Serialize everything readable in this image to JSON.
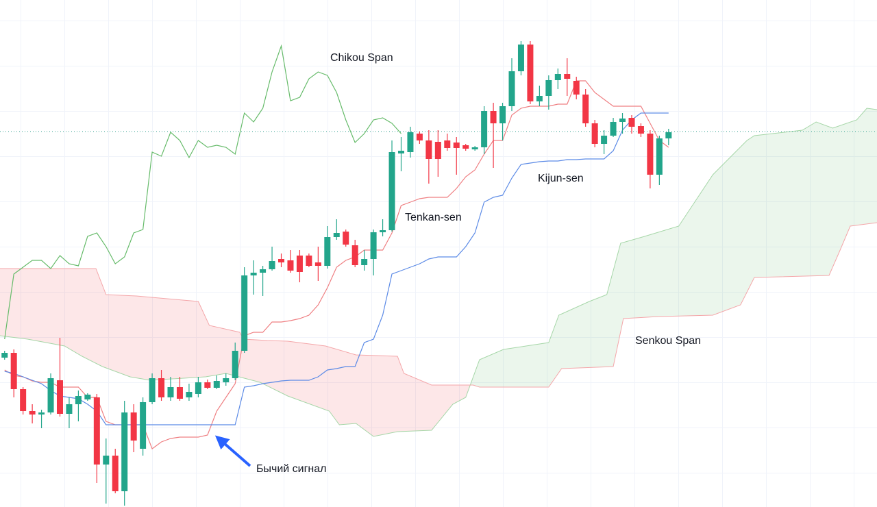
{
  "chart_data": {
    "type": "candlestick",
    "xlim": [
      -0.5,
      94.6
    ],
    "ylim": [
      0,
      740
    ],
    "ohlc": {
      "up_color": "#22a58b",
      "down_color": "#f23645",
      "open": [
        218,
        225,
        172,
        140,
        135,
        138,
        185,
        136,
        150,
        157,
        160,
        62,
        75,
        23,
        138,
        85,
        153,
        188,
        160,
        175,
        160,
        165,
        182,
        174,
        182,
        188,
        228,
        338,
        342,
        347,
        362,
        360,
        367,
        367,
        357,
        352,
        394,
        402,
        382,
        353,
        362,
        401,
        404,
        516,
        518,
        545,
        535,
        533,
        535,
        532,
        528,
        522,
        525,
        578,
        560,
        585,
        636,
        675,
        592,
        600,
        623,
        632,
        622,
        602,
        560,
        530,
        542,
        562,
        568,
        556,
        545,
        485,
        538
      ],
      "high": [
        228,
        230,
        175,
        150,
        142,
        195,
        247,
        160,
        170,
        166,
        165,
        100,
        85,
        155,
        150,
        160,
        195,
        200,
        190,
        190,
        180,
        190,
        186,
        192,
        195,
        240,
        350,
        360,
        352,
        380,
        370,
        375,
        375,
        370,
        380,
        410,
        420,
        405,
        390,
        375,
        405,
        420,
        535,
        540,
        555,
        548,
        550,
        550,
        545,
        540,
        530,
        527,
        585,
        590,
        590,
        655,
        680,
        680,
        615,
        630,
        640,
        655,
        628,
        610,
        565,
        550,
        568,
        575,
        572,
        560,
        550,
        542,
        552
      ],
      "low": [
        215,
        160,
        135,
        122,
        115,
        135,
        132,
        115,
        125,
        155,
        35,
        5,
        20,
        2,
        80,
        75,
        150,
        155,
        155,
        155,
        155,
        160,
        172,
        172,
        177,
        185,
        225,
        310,
        308,
        345,
        350,
        342,
        328,
        350,
        330,
        348,
        390,
        380,
        350,
        345,
        338,
        395,
        402,
        490,
        510,
        530,
        472,
        482,
        520,
        485,
        520,
        520,
        515,
        495,
        535,
        578,
        630,
        588,
        585,
        580,
        610,
        600,
        595,
        555,
        525,
        515,
        540,
        545,
        545,
        540,
        465,
        470,
        528
      ],
      "close": [
        225,
        172,
        140,
        135,
        138,
        188,
        136,
        150,
        162,
        164,
        62,
        75,
        23,
        138,
        97,
        153,
        188,
        160,
        175,
        158,
        168,
        182,
        174,
        184,
        188,
        228,
        338,
        342,
        347,
        359,
        357,
        345,
        343,
        352,
        352,
        394,
        400,
        383,
        353,
        362,
        401,
        404,
        518,
        520,
        547,
        535,
        508,
        508,
        524,
        524,
        523,
        525,
        578,
        560,
        585,
        636,
        675,
        592,
        600,
        623,
        632,
        625,
        602,
        560,
        530,
        542,
        562,
        567,
        555,
        545,
        485,
        538,
        547
      ]
    },
    "series": [
      {
        "name": "Tenkan-sen",
        "color": "#ef7f82",
        "values": [
          200,
          192,
          190,
          184,
          182,
          182,
          175,
          175,
          175,
          160,
          160,
          125,
          120,
          120,
          120,
          120,
          85,
          95,
          100,
          102,
          102,
          102,
          105,
          140,
          160,
          180,
          250,
          255,
          255,
          270,
          270,
          272,
          275,
          280,
          295,
          320,
          350,
          360,
          365,
          375,
          375,
          375,
          400,
          440,
          445,
          450,
          452,
          452,
          452,
          465,
          482,
          492,
          515,
          535,
          535,
          572,
          582,
          585,
          585,
          585,
          588,
          588,
          622,
          622,
          605,
          595,
          585,
          585,
          585,
          585,
          560,
          535,
          525
        ]
      },
      {
        "name": "Kijun-sen",
        "color": "#5b8ae6",
        "values": [
          198,
          195,
          190,
          185,
          180,
          170,
          162,
          160,
          158,
          150,
          140,
          120,
          120,
          120,
          120,
          120,
          120,
          120,
          120,
          120,
          120,
          120,
          120,
          120,
          120,
          120,
          175,
          177,
          180,
          182,
          184,
          185,
          185,
          185,
          190,
          200,
          202,
          205,
          205,
          240,
          245,
          280,
          340,
          345,
          350,
          355,
          362,
          365,
          365,
          365,
          380,
          400,
          445,
          452,
          455,
          480,
          500,
          502,
          504,
          505,
          505,
          507,
          507,
          508,
          508,
          508,
          520,
          550,
          565,
          575,
          575,
          575,
          575
        ]
      },
      {
        "name": "Chikou Span",
        "color": "#66bb6a",
        "values": [
          245,
          340,
          350,
          360,
          360,
          348,
          367,
          355,
          352,
          395,
          400,
          380,
          355,
          365,
          400,
          405,
          518,
          512,
          547,
          535,
          510,
          535,
          525,
          528,
          525,
          515,
          575,
          562,
          582,
          635,
          673,
          593,
          598,
          625,
          635,
          630,
          605,
          565,
          532,
          545,
          565,
          568,
          560,
          545
        ]
      }
    ],
    "cloud": {
      "name": "Senkou Span",
      "bull_color": "rgba(76,175,80,0.11)",
      "bear_color": "rgba(242,54,69,0.12)",
      "span_a": {
        "color": "#a5d6a7",
        "x": [
          -0.5,
          2.5,
          6.5,
          8.4,
          10.6,
          13.6,
          15.8,
          21.8,
          24,
          27.7,
          30.7,
          35.2,
          36.3,
          38.1,
          40,
          42.6,
          46.3,
          48.6,
          50,
          51.5,
          54.1,
          59,
          60.1,
          63.4,
          65.3,
          66.8,
          69.4,
          73.1,
          76.8,
          80.5,
          81.3,
          86.5,
          88,
          89.8,
          92.4,
          93.5,
          94.6
        ],
        "values": [
          250,
          245,
          235,
          220,
          205,
          190,
          185,
          190,
          195,
          182,
          162,
          140,
          120,
          122,
          103,
          110,
          112,
          150,
          160,
          215,
          230,
          240,
          280,
          300,
          310,
          385,
          395,
          410,
          485,
          535,
          542,
          550,
          562,
          553,
          565,
          582,
          580
        ]
      },
      "span_b": {
        "color": "#f4a6a9",
        "x": [
          -0.5,
          9.9,
          11,
          14.3,
          21,
          22.2,
          25.5,
          25.9,
          28.5,
          30.7,
          34.8,
          38.1,
          42.6,
          43.3,
          46.3,
          50.8,
          51.5,
          59,
          60.4,
          66,
          67.1,
          70.9,
          76.8,
          79.8,
          81.3,
          89.4,
          90.6,
          91.7,
          94.6
        ],
        "values": [
          348,
          348,
          310,
          308,
          300,
          265,
          255,
          245,
          243,
          242,
          235,
          222,
          220,
          195,
          178,
          178,
          175,
          175,
          202,
          205,
          275,
          278,
          280,
          295,
          335,
          338,
          375,
          410,
          415
        ]
      }
    },
    "price_line": {
      "value": 548,
      "color": "#2e9e8e"
    },
    "annotation": "Бычий сигнал"
  }
}
